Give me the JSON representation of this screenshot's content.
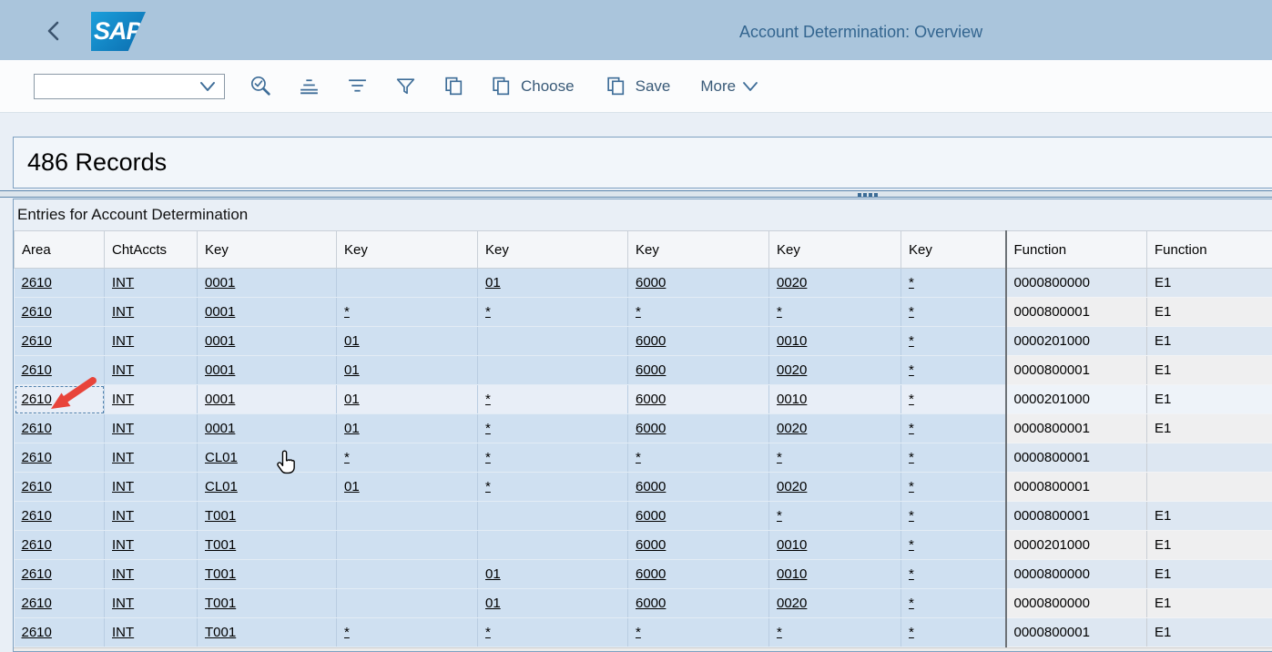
{
  "topbar": {
    "logo_text": "SAP",
    "title": "Account Determination: Overview",
    "back_icon": "chevron-left-icon"
  },
  "toolbar": {
    "combobox_value": "",
    "icons": [
      "find-icon",
      "sort-ascending-icon",
      "sort-descending-icon",
      "filter-icon",
      "copy-icon"
    ],
    "choose_label": "Choose",
    "save_label": "Save",
    "more_label": "More"
  },
  "records_panel": {
    "count_text": "486 Records"
  },
  "table": {
    "title": "Entries for Account Determination",
    "columns": [
      "Area",
      "ChtAccts",
      "Key",
      "Key",
      "Key",
      "Key",
      "Key",
      "Key",
      "Function",
      "Function"
    ],
    "link_columns_count": 8,
    "selected_row_index": 4,
    "rows": [
      [
        "2610",
        "INT",
        "0001",
        "",
        "01",
        "6000",
        "0020",
        "*",
        "0000800000",
        "E1"
      ],
      [
        "2610",
        "INT",
        "0001",
        "*",
        "*",
        "*",
        "*",
        "*",
        "0000800001",
        "E1"
      ],
      [
        "2610",
        "INT",
        "0001",
        "01",
        "",
        "6000",
        "0010",
        "*",
        "0000201000",
        "E1"
      ],
      [
        "2610",
        "INT",
        "0001",
        "01",
        "",
        "6000",
        "0020",
        "*",
        "0000800001",
        "E1"
      ],
      [
        "2610",
        "INT",
        "0001",
        "01",
        "*",
        "6000",
        "0010",
        "*",
        "0000201000",
        "E1"
      ],
      [
        "2610",
        "INT",
        "0001",
        "01",
        "*",
        "6000",
        "0020",
        "*",
        "0000800001",
        "E1"
      ],
      [
        "2610",
        "INT",
        "CL01",
        "*",
        "*",
        "*",
        "*",
        "*",
        "0000800001",
        ""
      ],
      [
        "2610",
        "INT",
        "CL01",
        "01",
        "*",
        "6000",
        "0020",
        "*",
        "0000800001",
        ""
      ],
      [
        "2610",
        "INT",
        "T001",
        "",
        "",
        "6000",
        "*",
        "*",
        "0000800001",
        "E1"
      ],
      [
        "2610",
        "INT",
        "T001",
        "",
        "",
        "6000",
        "0010",
        "*",
        "0000201000",
        "E1"
      ],
      [
        "2610",
        "INT",
        "T001",
        "",
        "01",
        "6000",
        "0010",
        "*",
        "0000800000",
        "E1"
      ],
      [
        "2610",
        "INT",
        "T001",
        "",
        "01",
        "6000",
        "0020",
        "*",
        "0000800000",
        "E1"
      ],
      [
        "2610",
        "INT",
        "T001",
        "*",
        "*",
        "*",
        "*",
        "*",
        "0000800001",
        "E1"
      ]
    ]
  },
  "annotations": {
    "red_arrow_icon": "points at selected Area cell in row 5",
    "hand_cursor_icon": "mouse pointer over CL01 row"
  },
  "colors": {
    "topbar_bg": "#aac5dc",
    "accent_icon_blue": "#3e6d98",
    "title_text": "#33658f",
    "key_cell_bg": "#cfe0f1",
    "fn_row_odd_bg": "#dde7f2",
    "fn_row_even_bg": "#efeff0",
    "selected_key_bg": "#e8eef7",
    "panel_border": "#7fa1c1",
    "arrow_red": "#e8443a"
  }
}
